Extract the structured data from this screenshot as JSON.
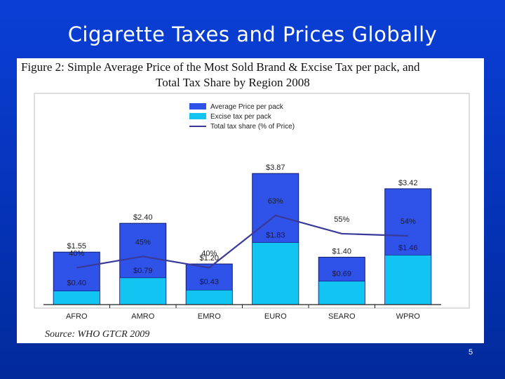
{
  "slide": {
    "title": "Cigarette Taxes and Prices Globally",
    "slide_number": "5"
  },
  "figure": {
    "title_line1": "Figure 2: Simple Average Price of the Most Sold Brand & Excise Tax per pack, and",
    "title_line2": "Total Tax Share by Region 2008",
    "source": "Source: WHO GTCR 2009"
  },
  "colors": {
    "price_bar": "#2f52e8",
    "excise_bar": "#12c4f2",
    "tax_share_line": "#39399a",
    "bar_outline": "#10186b"
  },
  "chart_data": {
    "type": "bar",
    "title": "Simple Average Price of the Most Sold Brand & Excise Tax per pack, and Total Tax Share by Region 2008",
    "categories": [
      "AFRO",
      "AMRO",
      "EMRO",
      "EURO",
      "SEARO",
      "WPRO"
    ],
    "series": [
      {
        "name": "Average Price per pack",
        "values": [
          1.55,
          2.4,
          1.2,
          3.87,
          1.4,
          3.42
        ],
        "labels": [
          "$1.55",
          "$2.40",
          "$1.20",
          "$3.87",
          "$1.40",
          "$3.42"
        ]
      },
      {
        "name": "Excise tax per pack",
        "values": [
          0.4,
          0.79,
          0.43,
          1.83,
          0.69,
          1.46
        ],
        "labels": [
          "$0.40",
          "$0.79",
          "$0.43",
          "$1.83",
          "$0.69",
          "$1.46"
        ]
      },
      {
        "name": "Total tax share (% of Price)",
        "type": "line",
        "values": [
          40,
          45,
          40,
          63,
          55,
          54
        ],
        "labels": [
          "40%",
          "45%",
          "40%",
          "63%",
          "55%",
          "54%"
        ]
      }
    ],
    "ylim_price": [
      0,
      5.2
    ],
    "ylim_share": [
      0,
      100
    ],
    "legend_position": "top-center",
    "grid": false
  }
}
